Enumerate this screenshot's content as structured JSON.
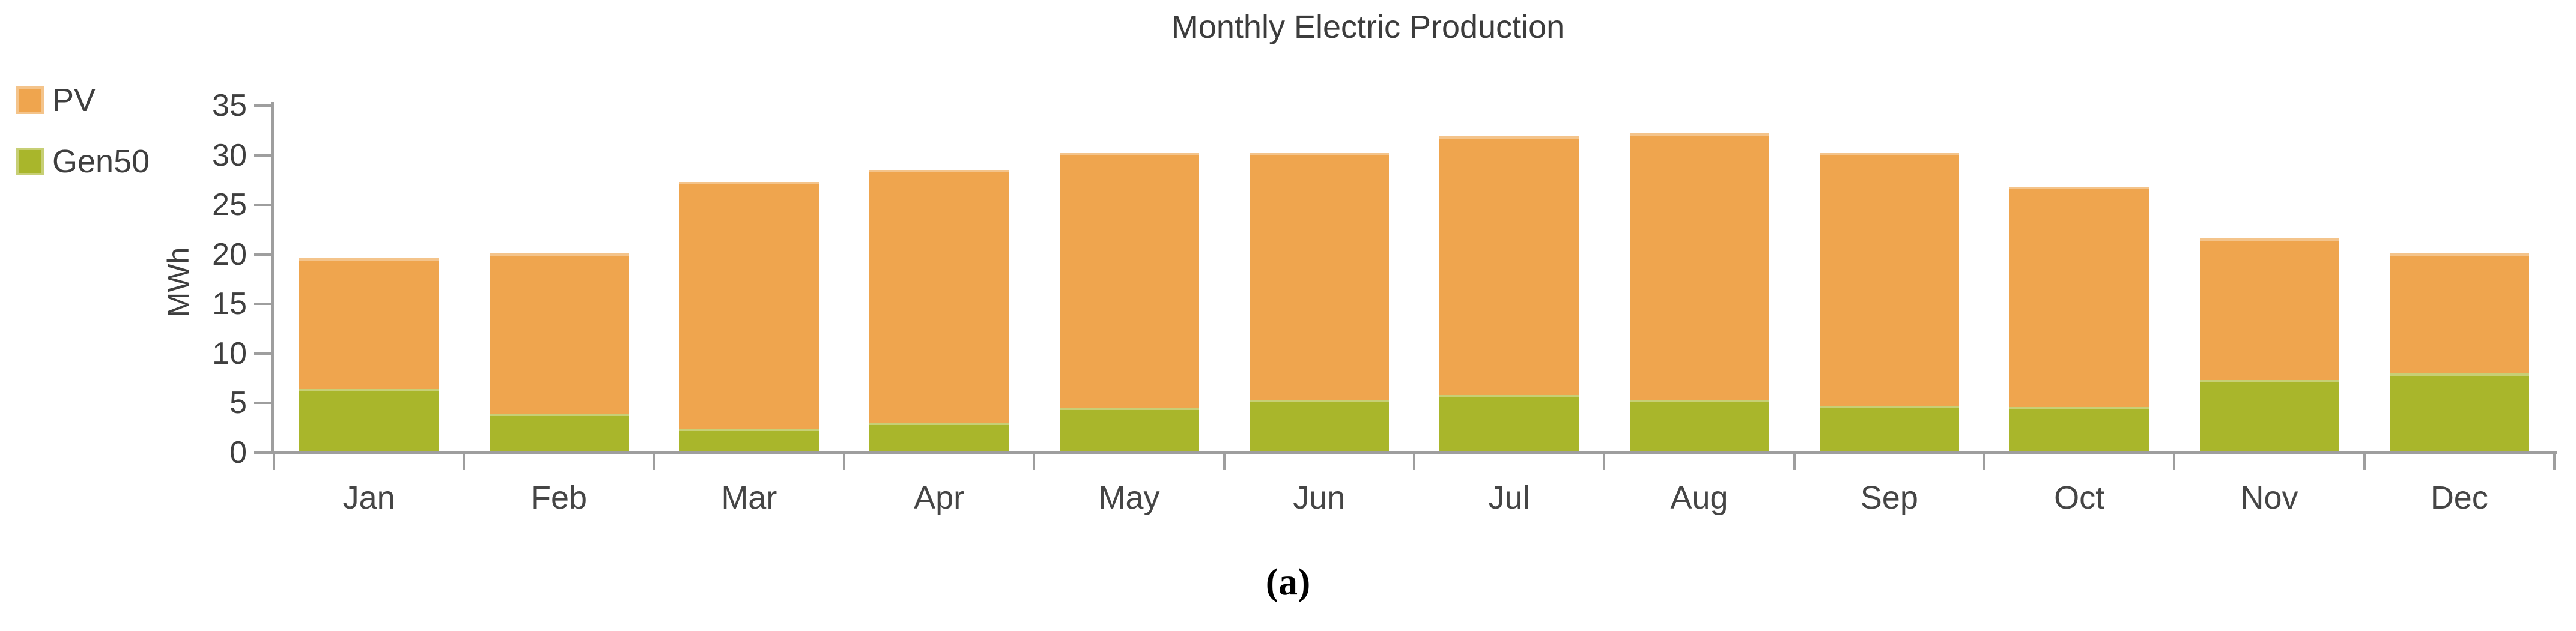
{
  "figure": {
    "title": "Monthly Electric Production",
    "ylabel": "MWh",
    "caption": "(a)",
    "legend": [
      {
        "label": "PV",
        "color": "#EFA54E"
      },
      {
        "label": "Gen50",
        "color": "#A9B62B"
      }
    ],
    "colors": {
      "pv_orange": "#EFA54E",
      "gen50_green": "#A9B62B",
      "axis_gray": "#9E9E9E",
      "text_gray": "#3F3F3F",
      "background": "#FFFFFF"
    }
  },
  "chart_data": {
    "type": "bar",
    "stacked": true,
    "title": "Monthly Electric Production",
    "xlabel": "",
    "ylabel": "MWh",
    "categories": [
      "Jan",
      "Feb",
      "Mar",
      "Apr",
      "May",
      "Jun",
      "Jul",
      "Aug",
      "Sep",
      "Oct",
      "Nov",
      "Dec"
    ],
    "series": [
      {
        "name": "Gen50",
        "color": "#A9B62B",
        "stack_position": "bottom",
        "values": [
          6.3,
          3.8,
          2.3,
          2.9,
          4.4,
          5.2,
          5.7,
          5.2,
          4.6,
          4.5,
          7.2,
          7.9
        ]
      },
      {
        "name": "PV",
        "color": "#EFA54E",
        "stack_position": "top",
        "values": [
          13.2,
          16.2,
          24.9,
          25.5,
          25.7,
          24.9,
          26.1,
          26.9,
          25.5,
          22.2,
          14.3,
          12.1
        ]
      }
    ],
    "stacked_totals": [
      19.5,
      20.0,
      27.2,
      28.4,
      30.1,
      30.1,
      31.8,
      32.1,
      30.1,
      26.7,
      21.5,
      20.0
    ],
    "ylim": [
      0,
      35
    ],
    "yticks": [
      0,
      5,
      10,
      15,
      20,
      25,
      30,
      35
    ],
    "grid": false,
    "legend_position": "top-left"
  }
}
